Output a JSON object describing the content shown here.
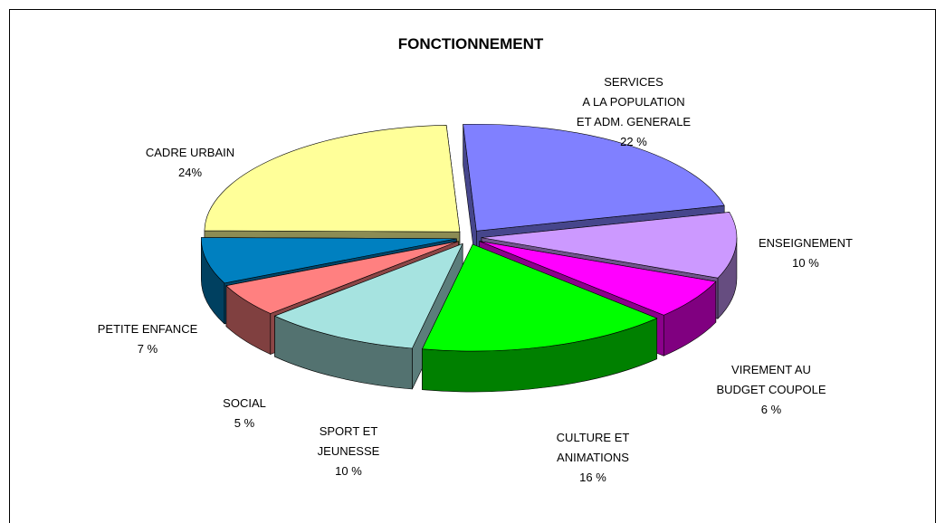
{
  "chart_data": {
    "type": "pie3d",
    "title": "FONCTIONNEMENT",
    "categories": [
      [
        "SERVICES",
        "A LA POPULATION",
        "ET ADM. GENERALE"
      ],
      [
        "ENSEIGNEMENT"
      ],
      [
        "VIREMENT AU",
        "BUDGET COUPOLE"
      ],
      [
        "CULTURE ET",
        "ANIMATIONS"
      ],
      [
        "SPORT ET",
        "JEUNESSE"
      ],
      [
        "SOCIAL"
      ],
      [
        "PETITE ENFANCE"
      ],
      [
        "CADRE URBAIN"
      ]
    ],
    "values": [
      22,
      10,
      6,
      16,
      10,
      5,
      7,
      24
    ],
    "value_labels": [
      "22 %",
      "10 %",
      "6 %",
      "16 %",
      "10 %",
      "5 %",
      "7 %",
      "24%"
    ],
    "colors": [
      "#8080ff",
      "#cc99ff",
      "#ff00ff",
      "#00ff00",
      "#a6e3e0",
      "#ff8080",
      "#0080c0",
      "#ffff99"
    ]
  }
}
